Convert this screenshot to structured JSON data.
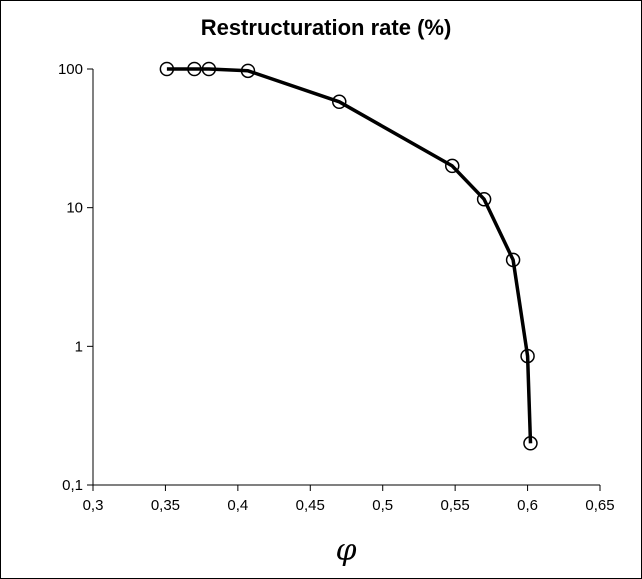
{
  "chart_data": {
    "type": "line",
    "title": "Restructuration rate (%)",
    "xlabel": "φ",
    "ylabel": "",
    "xlim": [
      0.3,
      0.65
    ],
    "ylim": [
      0.1,
      100
    ],
    "y_scale": "log",
    "grid": false,
    "legend": "none",
    "marker": "open-circle",
    "line_color": "#000000",
    "x_ticks": [
      0.3,
      0.35,
      0.4,
      0.45,
      0.5,
      0.55,
      0.6,
      0.65
    ],
    "x_tick_labels": [
      "0,3",
      "0,35",
      "0,4",
      "0,45",
      "0,5",
      "0,55",
      "0,6",
      "0,65"
    ],
    "y_ticks": [
      0.1,
      1,
      10,
      100
    ],
    "y_tick_labels": [
      "0,1",
      "1",
      "10",
      "100"
    ],
    "series": [
      {
        "x": [
          0.351,
          0.37,
          0.38,
          0.407,
          0.47,
          0.548,
          0.57,
          0.59,
          0.6,
          0.602
        ],
        "y": [
          100,
          100,
          100,
          97,
          58,
          20,
          11.5,
          4.2,
          0.85,
          0.2
        ]
      }
    ]
  }
}
